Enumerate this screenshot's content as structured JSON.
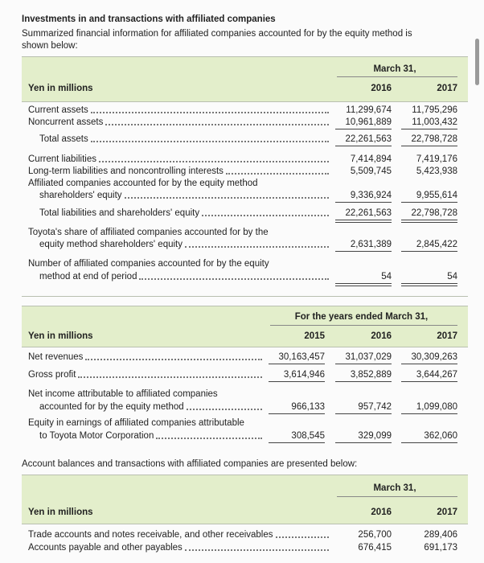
{
  "header": {
    "title": "Investments in and transactions with affiliated companies",
    "subtitle": [
      "Summarized financial information for affiliated companies accounted for by the equity method is",
      "shown below:"
    ]
  },
  "table1": {
    "period": "March 31,",
    "unit": "Yen in millions",
    "columns": [
      "2016",
      "2017"
    ],
    "rows": [
      {
        "label": [
          "Current assets"
        ],
        "values": [
          "11,299,674",
          "11,795,296"
        ]
      },
      {
        "label": [
          "Noncurrent assets"
        ],
        "values": [
          "10,961,889",
          "11,003,432"
        ]
      },
      {
        "label": [
          "Total assets"
        ],
        "values": [
          "22,261,563",
          "22,798,728"
        ]
      },
      {
        "label": [
          "Current liabilities"
        ],
        "values": [
          "7,414,894",
          "7,419,176"
        ]
      },
      {
        "label": [
          "Long-term liabilities and noncontrolling interests"
        ],
        "values": [
          "5,509,745",
          "5,423,938"
        ]
      },
      {
        "label": [
          "Affiliated companies accounted for by the equity method",
          "shareholders' equity"
        ],
        "values": [
          "9,336,924",
          "9,955,614"
        ]
      },
      {
        "label": [
          "Total liabilities and shareholders' equity"
        ],
        "values": [
          "22,261,563",
          "22,798,728"
        ]
      },
      {
        "label": [
          "Toyota's share of affiliated companies accounted for by the",
          "equity method shareholders' equity"
        ],
        "values": [
          "2,631,389",
          "2,845,422"
        ]
      },
      {
        "label": [
          "Number of affiliated companies accounted for by the equity",
          "method at end of period"
        ],
        "values": [
          "54",
          "54"
        ]
      }
    ]
  },
  "table2": {
    "period": "For the years ended March 31,",
    "unit": "Yen in millions",
    "columns": [
      "2015",
      "2016",
      "2017"
    ],
    "rows": [
      {
        "label": [
          "Net revenues"
        ],
        "values": [
          "30,163,457",
          "31,037,029",
          "30,309,263"
        ]
      },
      {
        "label": [
          "Gross profit"
        ],
        "values": [
          "3,614,946",
          "3,852,889",
          "3,644,267"
        ]
      },
      {
        "label": [
          "Net income attributable to affiliated companies",
          "accounted for by the equity method"
        ],
        "values": [
          "966,133",
          "957,742",
          "1,099,080"
        ]
      },
      {
        "label": [
          "Equity in earnings of affiliated companies attributable",
          "to Toyota Motor Corporation"
        ],
        "values": [
          "308,545",
          "329,099",
          "362,060"
        ]
      }
    ]
  },
  "note": "Account balances and transactions with affiliated companies are presented below:",
  "table3": {
    "period": "March 31,",
    "unit": "Yen in millions",
    "columns": [
      "2016",
      "2017"
    ],
    "rows": [
      {
        "label": [
          "Trade accounts and notes receivable, and other receivables"
        ],
        "values": [
          "256,700",
          "289,406"
        ]
      },
      {
        "label": [
          "Accounts payable and other payables"
        ],
        "values": [
          "676,415",
          "691,173"
        ]
      }
    ]
  }
}
